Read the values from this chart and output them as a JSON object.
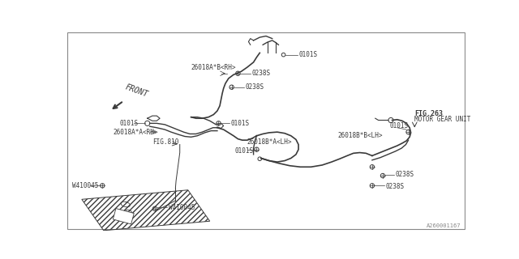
{
  "bg_color": "#ffffff",
  "line_color": "#3a3a3a",
  "text_color": "#3a3a3a",
  "diagram_id": "A260001167",
  "labels": {
    "front": "FRONT",
    "fig263": "FIG.263",
    "motor_gear": "MOTOR GEAR UNIT",
    "fig310": "FIG.810",
    "part_26018ABrh": "26018A*B<RH>",
    "part_26018AArh": "26018A*A<RH>",
    "part_26018BAlh": "26018B*A<LH>",
    "part_26018BBlh": "26018B*B<LH>",
    "ref_0101s": "0101S",
    "ref_0238s": "0238S",
    "ref_w410045": "W410045"
  },
  "font_size_small": 5.5,
  "font_size_label": 5.5
}
